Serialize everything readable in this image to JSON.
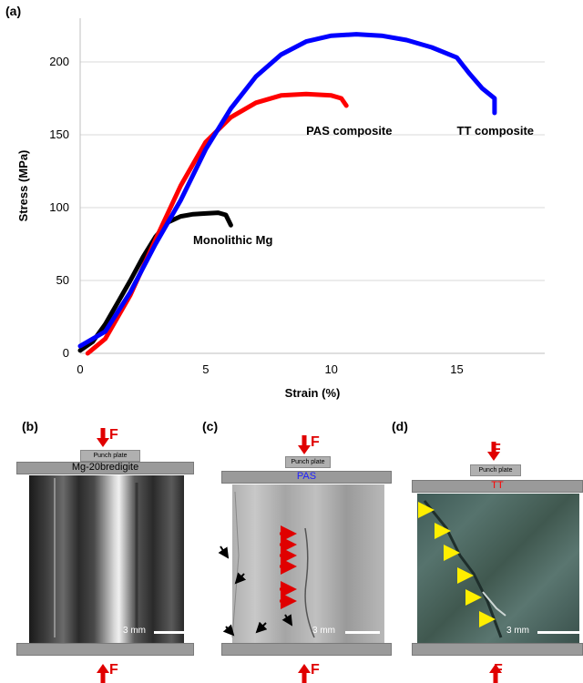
{
  "panels": {
    "a": "(a)",
    "b": "(b)",
    "c": "(c)",
    "d": "(d)"
  },
  "chart_data": {
    "type": "line",
    "xlabel": "Strain (%)",
    "ylabel": "Stress (MPa)",
    "xlim": [
      0,
      18.5
    ],
    "ylim": [
      0,
      230
    ],
    "xticks": [
      0,
      5,
      10,
      15
    ],
    "yticks": [
      0,
      50,
      100,
      150,
      200
    ],
    "grid": "horizontal",
    "series": [
      {
        "name": "Monolithic Mg",
        "color": "#000000",
        "x": [
          0,
          0.5,
          1.0,
          1.5,
          2.0,
          2.5,
          3.0,
          3.5,
          4.0,
          4.5,
          5.0,
          5.5,
          5.8,
          6.0
        ],
        "y": [
          2,
          8,
          20,
          35,
          50,
          66,
          80,
          90,
          94,
          95.5,
          96,
          96.5,
          95,
          88
        ]
      },
      {
        "name": "PAS composite",
        "color": "#ff0000",
        "x": [
          0.3,
          1.0,
          2.0,
          3.0,
          4.0,
          5.0,
          6.0,
          7.0,
          8.0,
          9.0,
          10.0,
          10.4,
          10.6
        ],
        "y": [
          0,
          10,
          40,
          78,
          115,
          145,
          162,
          172,
          177,
          178,
          177,
          175,
          170
        ]
      },
      {
        "name": "TT composite",
        "color": "#0000ff",
        "x": [
          0,
          1.0,
          2.0,
          3.0,
          4.0,
          5.0,
          6.0,
          7.0,
          8.0,
          9.0,
          10.0,
          11.0,
          12.0,
          13.0,
          14.0,
          15.0,
          15.5,
          16.0,
          16.5,
          16.5
        ],
        "y": [
          5,
          15,
          42,
          75,
          105,
          140,
          168,
          190,
          205,
          214,
          218,
          219,
          218,
          215,
          210,
          203,
          192,
          182,
          175,
          165
        ]
      }
    ],
    "annotations": [
      {
        "text": "Monolithic Mg",
        "x": 4.5,
        "y": 75
      },
      {
        "text": "PAS composite",
        "x": 9.0,
        "y": 150
      },
      {
        "text": "TT composite",
        "x": 15.0,
        "y": 150
      }
    ]
  },
  "photos": [
    {
      "id": "b",
      "punch_label": "Punch plate",
      "sample_label": "Mg-20bredigite",
      "sample_color": "#000000",
      "force_label": "F",
      "scale_label": "3 mm"
    },
    {
      "id": "c",
      "punch_label": "Punch plate",
      "sample_label": "PAS",
      "sample_color": "#2020ff",
      "force_label": "F",
      "scale_label": "3 mm"
    },
    {
      "id": "d",
      "punch_label": "Punch plate",
      "sample_label": "TT",
      "sample_color": "#ff0000",
      "force_label": "F",
      "scale_label": "3 mm"
    }
  ]
}
